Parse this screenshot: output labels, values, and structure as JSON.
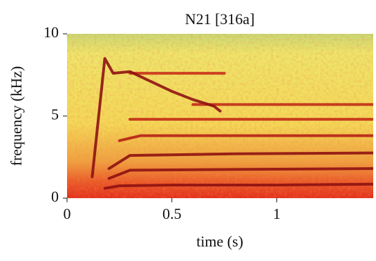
{
  "chart_data": {
    "type": "spectrogram",
    "title": "N21 [316a]",
    "x_label": "time (s)",
    "y_label": "frequency (kHz)",
    "xlim": [
      0,
      1.46
    ],
    "ylim": [
      0,
      10
    ],
    "xticks": [
      0,
      0.5,
      1
    ],
    "yticks": [
      0,
      5,
      10
    ],
    "series": [
      {
        "color": "#8e1212",
        "x": [
          0.18,
          0.25,
          0.5,
          1.0,
          1.46
        ],
        "values": [
          0.6,
          0.75,
          0.8,
          0.8,
          0.85
        ]
      },
      {
        "color": "#8e1212",
        "x": [
          0.2,
          0.3,
          0.8,
          1.46
        ],
        "values": [
          1.2,
          1.7,
          1.75,
          1.8
        ]
      },
      {
        "color": "#8e1212",
        "x": [
          0.2,
          0.3,
          0.8,
          1.46
        ],
        "values": [
          1.8,
          2.6,
          2.7,
          2.75
        ]
      },
      {
        "color": "#b52015",
        "x": [
          0.25,
          0.35,
          1.46
        ],
        "values": [
          3.5,
          3.8,
          3.8
        ]
      },
      {
        "color": "#c22a18",
        "x": [
          0.3,
          1.46
        ],
        "values": [
          4.8,
          4.8
        ]
      },
      {
        "color": "#c22a18",
        "x": [
          0.6,
          1.46
        ],
        "values": [
          5.7,
          5.7
        ]
      },
      {
        "color": "#c83018",
        "x": [
          0.3,
          0.75
        ],
        "values": [
          7.6,
          7.6
        ]
      },
      {
        "color": "#8e1212",
        "x": [
          0.12,
          0.18,
          0.22,
          0.3,
          0.4,
          0.5,
          0.6,
          0.7,
          0.73
        ],
        "values": [
          1.3,
          8.5,
          7.6,
          7.7,
          7.1,
          6.5,
          6.0,
          5.6,
          5.3
        ]
      }
    ]
  }
}
